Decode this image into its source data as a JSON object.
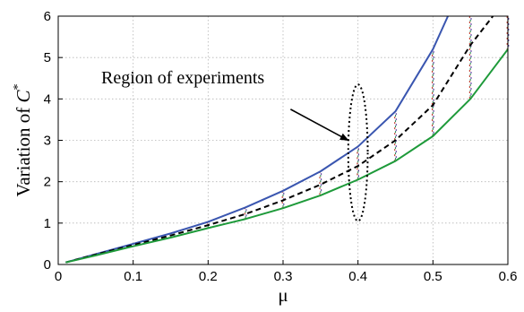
{
  "chart_data": {
    "type": "line",
    "title": "",
    "xlabel": "μ",
    "ylabel_prefix": "Variation of ",
    "ylabel_symbol": "C",
    "ylabel_superscript": "*",
    "xlim": [
      0,
      0.6
    ],
    "ylim": [
      0,
      6
    ],
    "xticks": [
      "0",
      "0.1",
      "0.2",
      "0.3",
      "0.4",
      "0.5",
      "0.6"
    ],
    "yticks": [
      "0",
      "1",
      "2",
      "3",
      "4",
      "5",
      "6"
    ],
    "grid": true,
    "legend": "none",
    "series": [
      {
        "style": "solid",
        "color": "#3a56b0",
        "x": [
          0.01,
          0.05,
          0.1,
          0.15,
          0.2,
          0.25,
          0.3,
          0.35,
          0.4,
          0.45,
          0.5,
          0.52
        ],
        "y": [
          0.05,
          0.25,
          0.5,
          0.75,
          1.03,
          1.38,
          1.78,
          2.25,
          2.85,
          3.7,
          5.2,
          6.0
        ]
      },
      {
        "style": "dashed",
        "color": "#000000",
        "x": [
          0.01,
          0.05,
          0.1,
          0.15,
          0.2,
          0.25,
          0.3,
          0.35,
          0.4,
          0.45,
          0.5,
          0.55,
          0.58
        ],
        "y": [
          0.05,
          0.24,
          0.47,
          0.7,
          0.95,
          1.22,
          1.55,
          1.93,
          2.38,
          3.0,
          3.85,
          5.3,
          6.0
        ]
      },
      {
        "style": "solid",
        "color": "#1e9a3a",
        "x": [
          0.01,
          0.05,
          0.1,
          0.15,
          0.2,
          0.25,
          0.3,
          0.35,
          0.4,
          0.45,
          0.5,
          0.55,
          0.6
        ],
        "y": [
          0.05,
          0.22,
          0.44,
          0.65,
          0.88,
          1.1,
          1.36,
          1.67,
          2.05,
          2.5,
          3.1,
          4.0,
          5.2
        ]
      }
    ],
    "error_bars": [
      {
        "x": 0.2,
        "ymin": 0.88,
        "ymax": 1.03
      },
      {
        "x": 0.25,
        "ymin": 1.1,
        "ymax": 1.38
      },
      {
        "x": 0.3,
        "ymin": 1.36,
        "ymax": 1.78
      },
      {
        "x": 0.35,
        "ymin": 1.67,
        "ymax": 2.25
      },
      {
        "x": 0.4,
        "ymin": 2.05,
        "ymax": 2.85
      },
      {
        "x": 0.45,
        "ymin": 2.5,
        "ymax": 3.7
      },
      {
        "x": 0.5,
        "ymin": 3.1,
        "ymax": 5.2
      },
      {
        "x": 0.55,
        "ymin": 4.0,
        "ymax": 6.0
      },
      {
        "x": 0.6,
        "ymin": 5.2,
        "ymax": 6.0
      }
    ],
    "error_bar_colors": [
      "#c0392b",
      "#2e8b57",
      "#5a3fa0"
    ],
    "annotation": {
      "text": "Region of experiments",
      "ellipse_center": [
        0.4,
        2.7
      ],
      "ellipse_rx": 0.013,
      "ellipse_ry": 1.65,
      "arrow_from": [
        0.31,
        3.75
      ],
      "arrow_to": [
        0.387,
        3.0
      ]
    }
  }
}
